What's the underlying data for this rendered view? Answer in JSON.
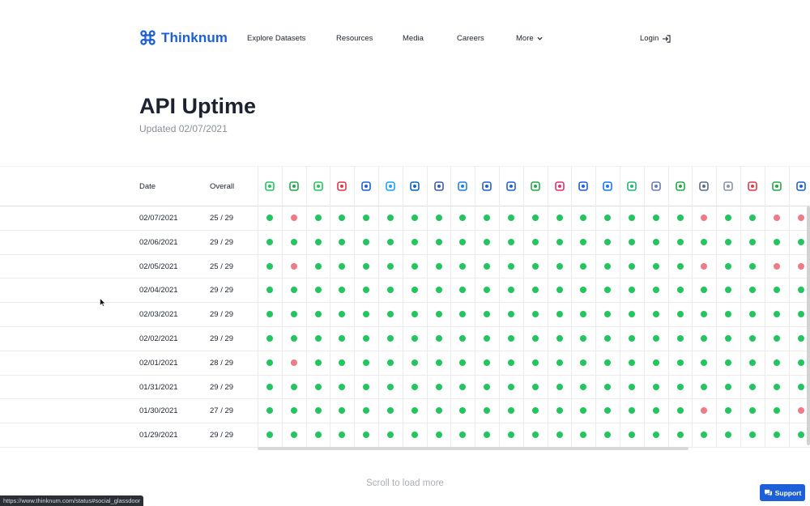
{
  "header": {
    "brand": "Thinknum",
    "nav": [
      "Explore Datasets",
      "Resources",
      "Media",
      "Careers",
      "More"
    ],
    "login": "Login"
  },
  "page": {
    "title": "API Uptime",
    "updated": "Updated 02/07/2021"
  },
  "table": {
    "headers": {
      "date": "Date",
      "overall": "Overall"
    },
    "icons": [
      {
        "name": "job-listings-icon",
        "color": "#22c55e"
      },
      {
        "name": "glassdoor-icon",
        "color": "#22a84a"
      },
      {
        "name": "mobile-app-icon",
        "color": "#22c55e"
      },
      {
        "name": "web-traffic-icon",
        "color": "#e0364a"
      },
      {
        "name": "info-icon",
        "color": "#1d5fd6"
      },
      {
        "name": "twitter-icon",
        "color": "#1da1f2"
      },
      {
        "name": "linkedin-icon",
        "color": "#0a66c2"
      },
      {
        "name": "box-icon",
        "color": "#3b5aa8"
      },
      {
        "name": "app-store-icon",
        "color": "#1d7fe6"
      },
      {
        "name": "pie-chart-icon",
        "color": "#1d5fd6"
      },
      {
        "name": "store-icon",
        "color": "#1d5fd6"
      },
      {
        "name": "employees-icon",
        "color": "#22a84a"
      },
      {
        "name": "instagram-icon",
        "color": "#e1306c"
      },
      {
        "name": "globe-icon",
        "color": "#1d5fd6"
      },
      {
        "name": "facebook-icon",
        "color": "#1877f2"
      },
      {
        "name": "google-play-icon",
        "color": "#22b573"
      },
      {
        "name": "settings-box-icon",
        "color": "#6b7bb0"
      },
      {
        "name": "stack-icon",
        "color": "#22a84a"
      },
      {
        "name": "car-icon",
        "color": "#5b6b8a"
      },
      {
        "name": "government-icon",
        "color": "#8a94a8"
      },
      {
        "name": "health-icon",
        "color": "#e0364a"
      },
      {
        "name": "reviews-icon",
        "color": "#22a84a"
      },
      {
        "name": "book-icon",
        "color": "#1d5fd6"
      }
    ],
    "rows": [
      {
        "date": "02/07/2021",
        "overall": "25 / 29",
        "status": [
          1,
          0,
          1,
          1,
          1,
          1,
          1,
          1,
          1,
          1,
          1,
          1,
          1,
          1,
          1,
          1,
          1,
          1,
          0,
          1,
          1,
          0,
          0
        ]
      },
      {
        "date": "02/06/2021",
        "overall": "29 / 29",
        "status": [
          1,
          1,
          1,
          1,
          1,
          1,
          1,
          1,
          1,
          1,
          1,
          1,
          1,
          1,
          1,
          1,
          1,
          1,
          1,
          1,
          1,
          1,
          1
        ]
      },
      {
        "date": "02/05/2021",
        "overall": "25 / 29",
        "status": [
          1,
          0,
          1,
          1,
          1,
          1,
          1,
          1,
          1,
          1,
          1,
          1,
          1,
          1,
          1,
          1,
          1,
          1,
          0,
          1,
          1,
          0,
          0
        ]
      },
      {
        "date": "02/04/2021",
        "overall": "29 / 29",
        "status": [
          1,
          1,
          1,
          1,
          1,
          1,
          1,
          1,
          1,
          1,
          1,
          1,
          1,
          1,
          1,
          1,
          1,
          1,
          1,
          1,
          1,
          1,
          1
        ]
      },
      {
        "date": "02/03/2021",
        "overall": "29 / 29",
        "status": [
          1,
          1,
          1,
          1,
          1,
          1,
          1,
          1,
          1,
          1,
          1,
          1,
          1,
          1,
          1,
          1,
          1,
          1,
          1,
          1,
          1,
          1,
          1
        ]
      },
      {
        "date": "02/02/2021",
        "overall": "29 / 29",
        "status": [
          1,
          1,
          1,
          1,
          1,
          1,
          1,
          1,
          1,
          1,
          1,
          1,
          1,
          1,
          1,
          1,
          1,
          1,
          1,
          1,
          1,
          1,
          1
        ]
      },
      {
        "date": "02/01/2021",
        "overall": "28 / 29",
        "status": [
          1,
          0,
          1,
          1,
          1,
          1,
          1,
          1,
          1,
          1,
          1,
          1,
          1,
          1,
          1,
          1,
          1,
          1,
          1,
          1,
          1,
          1,
          1
        ]
      },
      {
        "date": "01/31/2021",
        "overall": "29 / 29",
        "status": [
          1,
          1,
          1,
          1,
          1,
          1,
          1,
          1,
          1,
          1,
          1,
          1,
          1,
          1,
          1,
          1,
          1,
          1,
          1,
          1,
          1,
          1,
          1
        ]
      },
      {
        "date": "01/30/2021",
        "overall": "27 / 29",
        "status": [
          1,
          1,
          1,
          1,
          1,
          1,
          1,
          1,
          1,
          1,
          1,
          1,
          1,
          1,
          1,
          1,
          1,
          1,
          0,
          1,
          1,
          1,
          0
        ]
      },
      {
        "date": "01/29/2021",
        "overall": "29 / 29",
        "status": [
          1,
          1,
          1,
          1,
          1,
          1,
          1,
          1,
          1,
          1,
          1,
          1,
          1,
          1,
          1,
          1,
          1,
          1,
          1,
          1,
          1,
          1,
          1
        ]
      }
    ]
  },
  "footer": {
    "load_more": "Scroll to load more",
    "status_url": "https://www.thinknum.com/status#social_glassdoor",
    "support": "Support"
  },
  "colors": {
    "brand": "#1d5fd6",
    "up": "#22c55e",
    "down": "#f07a86"
  }
}
